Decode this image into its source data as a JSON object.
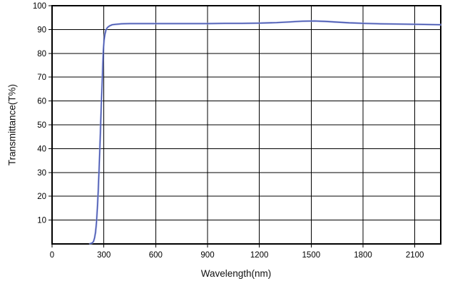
{
  "chart_data": {
    "type": "line",
    "title": "",
    "xlabel": "Wavelength(nm)",
    "ylabel": "Transmittance(T%)",
    "xlim": [
      0,
      2250
    ],
    "ylim": [
      0,
      100
    ],
    "x_ticks": [
      0,
      300,
      600,
      900,
      1200,
      1500,
      1800,
      2100
    ],
    "y_ticks": [
      10,
      20,
      30,
      40,
      50,
      60,
      70,
      80,
      90,
      100
    ],
    "grid": true,
    "legend": false,
    "colors": {
      "grid": "#000000",
      "border": "#000000",
      "background": "#ffffff",
      "tick_text": "#000000"
    },
    "series": [
      {
        "name": "transmittance-curve",
        "color": "#3f4fae",
        "halo_color": "#aab4e4",
        "points": [
          [
            220,
            0.1
          ],
          [
            232,
            0.4
          ],
          [
            240,
            1.0
          ],
          [
            246,
            2.5
          ],
          [
            252,
            5.0
          ],
          [
            257,
            9.0
          ],
          [
            262,
            15.0
          ],
          [
            267,
            22.0
          ],
          [
            272,
            31.0
          ],
          [
            277,
            41.0
          ],
          [
            281,
            50.0
          ],
          [
            285,
            58.0
          ],
          [
            289,
            66.0
          ],
          [
            293,
            74.0
          ],
          [
            297,
            81.0
          ],
          [
            301,
            85.5
          ],
          [
            306,
            88.0
          ],
          [
            312,
            89.8
          ],
          [
            320,
            90.8
          ],
          [
            332,
            91.5
          ],
          [
            348,
            92.0
          ],
          [
            370,
            92.2
          ],
          [
            400,
            92.4
          ],
          [
            450,
            92.5
          ],
          [
            500,
            92.5
          ],
          [
            600,
            92.5
          ],
          [
            700,
            92.5
          ],
          [
            800,
            92.5
          ],
          [
            900,
            92.5
          ],
          [
            1000,
            92.6
          ],
          [
            1100,
            92.6
          ],
          [
            1200,
            92.7
          ],
          [
            1300,
            92.9
          ],
          [
            1380,
            93.2
          ],
          [
            1450,
            93.5
          ],
          [
            1520,
            93.6
          ],
          [
            1580,
            93.4
          ],
          [
            1650,
            93.1
          ],
          [
            1720,
            92.8
          ],
          [
            1800,
            92.6
          ],
          [
            1900,
            92.4
          ],
          [
            2000,
            92.3
          ],
          [
            2100,
            92.2
          ],
          [
            2180,
            92.1
          ],
          [
            2250,
            92.0
          ]
        ]
      }
    ]
  }
}
